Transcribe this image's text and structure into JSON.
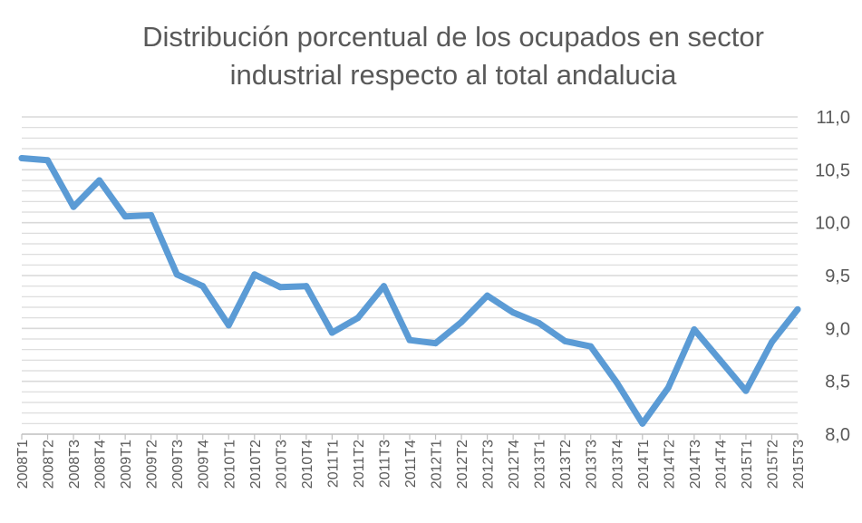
{
  "chart_data": {
    "type": "line",
    "title_lines": [
      "Distribución porcentual de los ocupados en sector",
      "industrial respecto al total andalucia"
    ],
    "xlabel": "",
    "ylabel": "",
    "ylim": [
      8.0,
      11.0
    ],
    "yticks": [
      "8,0",
      "8,5",
      "9,0",
      "9,5",
      "10,0",
      "10,5",
      "11,0"
    ],
    "y_axis_position": "right",
    "grid": true,
    "legend": "none",
    "categories": [
      "2008T1",
      "2008T2",
      "2008T3",
      "2008T4",
      "2009T1",
      "2009T2",
      "2009T3",
      "2009T4",
      "2010T1",
      "2010T2",
      "2010T3",
      "2010T4",
      "2011T1",
      "2011T2",
      "2011T3",
      "2011T4",
      "2012T1",
      "2012T2",
      "2012T3",
      "2012T4",
      "2013T1",
      "2013T2",
      "2013T3",
      "2013T4",
      "2014T1",
      "2014T2",
      "2014T3",
      "2014T4",
      "2015T1",
      "2015T2",
      "2015T3"
    ],
    "series": [
      {
        "values": [
          10.61,
          10.59,
          10.15,
          10.4,
          10.06,
          10.07,
          9.51,
          9.4,
          9.03,
          9.51,
          9.39,
          9.4,
          8.96,
          9.1,
          9.4,
          8.89,
          8.86,
          9.06,
          9.31,
          9.15,
          9.05,
          8.88,
          8.83,
          8.49,
          8.1,
          8.44,
          8.99,
          8.7,
          8.41,
          8.87,
          9.18
        ],
        "color": "#5B9BD5"
      }
    ],
    "colors": {
      "line": "#5B9BD5",
      "gridline": "#D9D9D9",
      "text": "#595959",
      "axis": "#BFBFBF"
    }
  }
}
